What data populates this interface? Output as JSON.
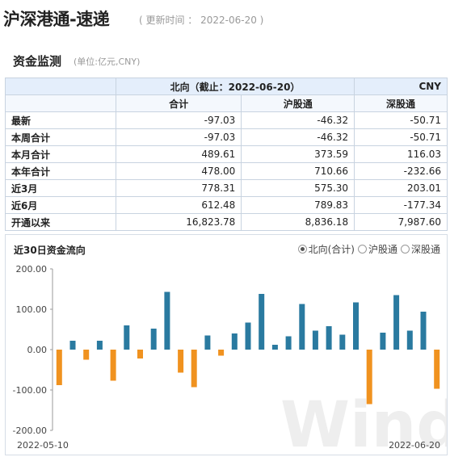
{
  "header": {
    "title": "沪深港通-速递",
    "update_text": "( 更新时间 ： 2022-06-20 )"
  },
  "section": {
    "title": "资金监测",
    "unit": "(单位:亿元,CNY)"
  },
  "table": {
    "north_label": "北向（截止：2022-06-20）",
    "currency": "CNY",
    "columns": [
      "合计",
      "沪股通",
      "深股通"
    ],
    "rows": [
      {
        "label": "最新",
        "values": [
          "-97.03",
          "-46.32",
          "-50.71"
        ]
      },
      {
        "label": "本周合计",
        "values": [
          "-97.03",
          "-46.32",
          "-50.71"
        ]
      },
      {
        "label": "本月合计",
        "values": [
          "489.61",
          "373.59",
          "116.03"
        ]
      },
      {
        "label": "本年合计",
        "values": [
          "478.00",
          "710.66",
          "-232.66"
        ]
      },
      {
        "label": "近3月",
        "values": [
          "778.31",
          "575.30",
          "203.01"
        ]
      },
      {
        "label": "近6月",
        "values": [
          "612.48",
          "789.83",
          "-177.34"
        ]
      },
      {
        "label": "开通以来",
        "values": [
          "16,823.78",
          "8,836.18",
          "7,987.60"
        ]
      }
    ]
  },
  "chart_section": {
    "title": "近30日资金流向",
    "options": [
      {
        "label": "北向(合计)",
        "selected": true
      },
      {
        "label": "沪股通",
        "selected": false
      },
      {
        "label": "深股通",
        "selected": false
      }
    ],
    "watermark": "Wind"
  },
  "chart_data": {
    "type": "bar",
    "start_label": "2022-05-10",
    "end_label": "2022-06-20",
    "ylim": [
      -200,
      200
    ],
    "yticks": [
      "200.00",
      "100.00",
      "0.00",
      "-100.00",
      "-200.00"
    ],
    "ytick_values": [
      200,
      100,
      0,
      -100,
      -200
    ],
    "values": [
      -88,
      22,
      -25,
      22,
      -77,
      60,
      -22,
      52,
      143,
      -57,
      -93,
      35,
      -15,
      40,
      67,
      138,
      12,
      33,
      113,
      47,
      58,
      37,
      117,
      -135,
      42,
      135,
      47,
      94,
      -97
    ],
    "colors": {
      "positive": "#2a7aa0",
      "negative": "#f0921f"
    }
  }
}
